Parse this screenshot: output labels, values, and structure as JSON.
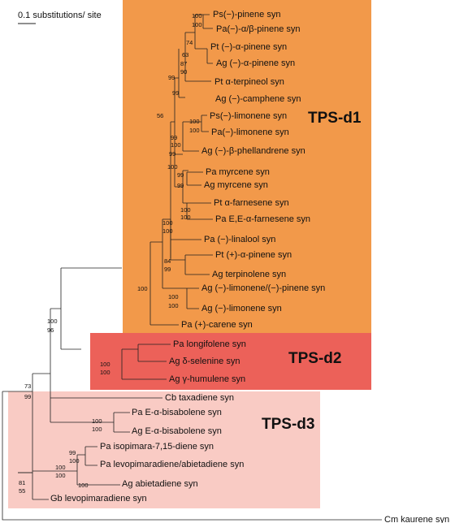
{
  "scale_bar": {
    "label": "0.1 substitutions/ site"
  },
  "clades": [
    {
      "label": "TPS-d1",
      "color": "#f2994a"
    },
    {
      "label": "TPS-d2",
      "color": "#ec6159"
    },
    {
      "label": "TPS-d3",
      "color": "#f9cbc4"
    }
  ],
  "leaves": [
    "Ps(−)-pinene syn",
    "Pa(−)-α/β-pinene syn",
    "Pt (−)-α-pinene syn",
    "Ag (−)-α-pinene syn",
    "Pt α-terpineol syn",
    "Ag (−)-camphene syn",
    "Ps(−)-limonene syn",
    "Pa(−)-limonene syn",
    "Ag (−)-β-phellandrene syn",
    "Pa myrcene syn",
    "Ag myrcene syn",
    "Pt α-farnesene syn",
    "Pa E,E-α-farnesene syn",
    "Pa (−)-linalool syn",
    "Pt (+)-α-pinene syn",
    "Ag terpinolene syn",
    "Ag (−)-limonene/(−)-pinene syn",
    "Ag (−)-limonene syn",
    "Pa (+)-carene syn",
    "Pa longifolene syn",
    "Ag δ-selenine syn",
    "Ag γ-humulene syn",
    "Cb taxadiene syn",
    "Pa E-α-bisabolene syn",
    "Ag E-α-bisabolene syn",
    "Pa isopimara-7,15-diene syn",
    "Pa levopimaradiene/abietadiene syn",
    "Ag abietadiene syn",
    "Gb levopimaradiene syn",
    "Cm kaurene syn"
  ],
  "bootstrap": [
    "100",
    "100",
    "74",
    "63",
    "87",
    "90",
    "99",
    "99",
    "56",
    "100",
    "100",
    "99",
    "100",
    "99",
    "100",
    "99",
    "99",
    "100",
    "100",
    "100",
    "100",
    "84",
    "99",
    "100",
    "100",
    "100",
    "100",
    "96",
    "100",
    "100",
    "73",
    "99",
    "100",
    "100",
    "99",
    "100",
    "100",
    "100",
    "100",
    "81",
    "55"
  ]
}
